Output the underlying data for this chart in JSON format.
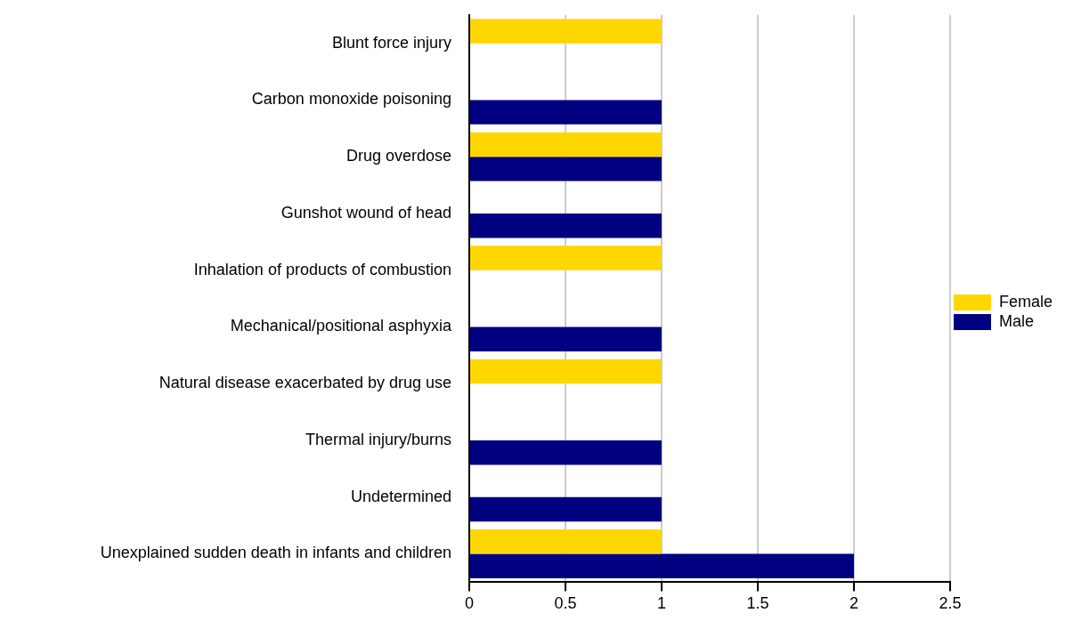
{
  "chart_data": {
    "type": "bar",
    "orientation": "horizontal",
    "categories": [
      "Blunt force injury",
      "Carbon monoxide poisoning",
      "Drug overdose",
      "Gunshot wound of head",
      "Inhalation of products of combustion",
      "Mechanical/positional asphyxia",
      "Natural disease exacerbated by drug use",
      "Thermal injury/burns",
      "Undetermined",
      "Unexplained sudden death in infants and children"
    ],
    "series": [
      {
        "name": "Female",
        "color": "#ffd700",
        "values": [
          1,
          null,
          1,
          null,
          1,
          null,
          1,
          null,
          null,
          1
        ]
      },
      {
        "name": "Male",
        "color": "#000080",
        "values": [
          null,
          1,
          1,
          1,
          null,
          1,
          null,
          1,
          1,
          2
        ]
      }
    ],
    "xlim": [
      0,
      2.5
    ],
    "xticks": [
      0,
      0.5,
      1,
      1.5,
      2,
      2.5
    ],
    "grid": "x",
    "legend": "right"
  }
}
